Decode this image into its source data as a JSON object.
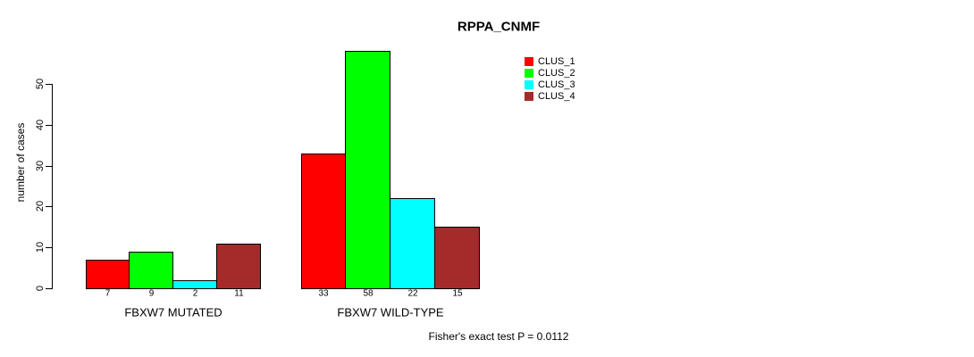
{
  "title": "RPPA_CNMF",
  "annotation": "Fisher's exact test P = 0.0112",
  "colors": {
    "clus_1": "#FF0000",
    "clus_2": "#00FF00",
    "clus_3": "#00FFFF",
    "clus_4": "#A52A2A",
    "axis": "#000000",
    "background": "#FFFFFF"
  },
  "chart_data": {
    "type": "bar",
    "title": "RPPA_CNMF",
    "xlabel": "",
    "ylabel": "number of cases",
    "ylim": [
      0,
      58
    ],
    "yticks": [
      0,
      10,
      20,
      30,
      40,
      50
    ],
    "grid": false,
    "legend_position": "top-right",
    "categories": [
      "FBXW7 MUTATED",
      "FBXW7 WILD-TYPE"
    ],
    "series": [
      {
        "name": "CLUS_1",
        "color": "#FF0000",
        "values": [
          7,
          33
        ]
      },
      {
        "name": "CLUS_2",
        "color": "#00FF00",
        "values": [
          9,
          58
        ]
      },
      {
        "name": "CLUS_3",
        "color": "#00FFFF",
        "values": [
          2,
          22
        ]
      },
      {
        "name": "CLUS_4",
        "color": "#A52A2A",
        "values": [
          11,
          15
        ]
      }
    ],
    "bar_value_labels": [
      [
        7,
        9,
        2,
        11
      ],
      [
        33,
        58,
        22,
        15
      ]
    ],
    "annotation": "Fisher's exact test P = 0.0112"
  }
}
